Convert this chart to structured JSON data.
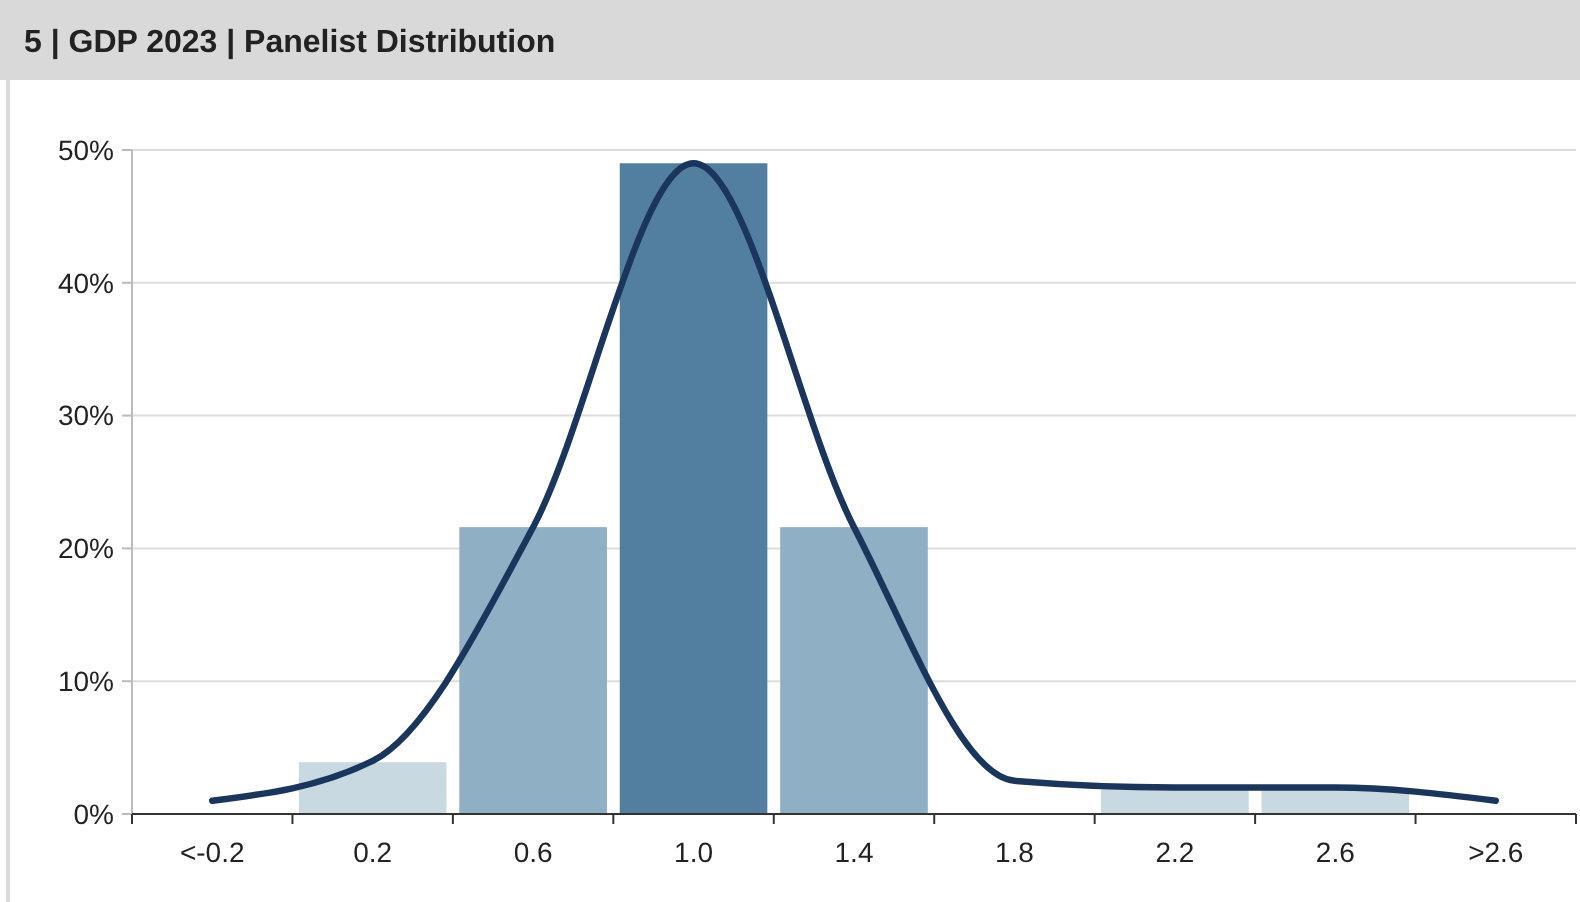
{
  "chart_data": {
    "type": "bar",
    "title": "5 | GDP 2023 | Panelist Distribution",
    "categories": [
      "<-0.2",
      "0.2",
      "0.6",
      "1.0",
      "1.4",
      "1.8",
      "2.2",
      "2.6",
      ">2.6"
    ],
    "series": [
      {
        "colors": [
          "#c8d9e2",
          "#c8d9e2",
          "#8eafc4",
          "#527f9f",
          "#8eafc4",
          "#c8d9e2",
          "#c8d9e2",
          "#c8d9e2",
          "#c8d9e2"
        ],
        "values": [
          0,
          3.9,
          21.6,
          49,
          21.6,
          0,
          1.9,
          1.9,
          0
        ]
      },
      {
        "type": "line",
        "color": "#1b365d",
        "values": [
          1,
          4,
          21.6,
          49,
          21.6,
          2.5,
          2,
          2,
          1
        ]
      }
    ],
    "ylim": [
      0,
      50
    ],
    "yticks": [
      {
        "value": 0,
        "label": "0%"
      },
      {
        "value": 10,
        "label": "10%"
      },
      {
        "value": 20,
        "label": "20%"
      },
      {
        "value": 30,
        "label": "30%"
      },
      {
        "value": 40,
        "label": "40%"
      },
      {
        "value": 50,
        "label": "50%"
      }
    ],
    "grid": "y"
  }
}
